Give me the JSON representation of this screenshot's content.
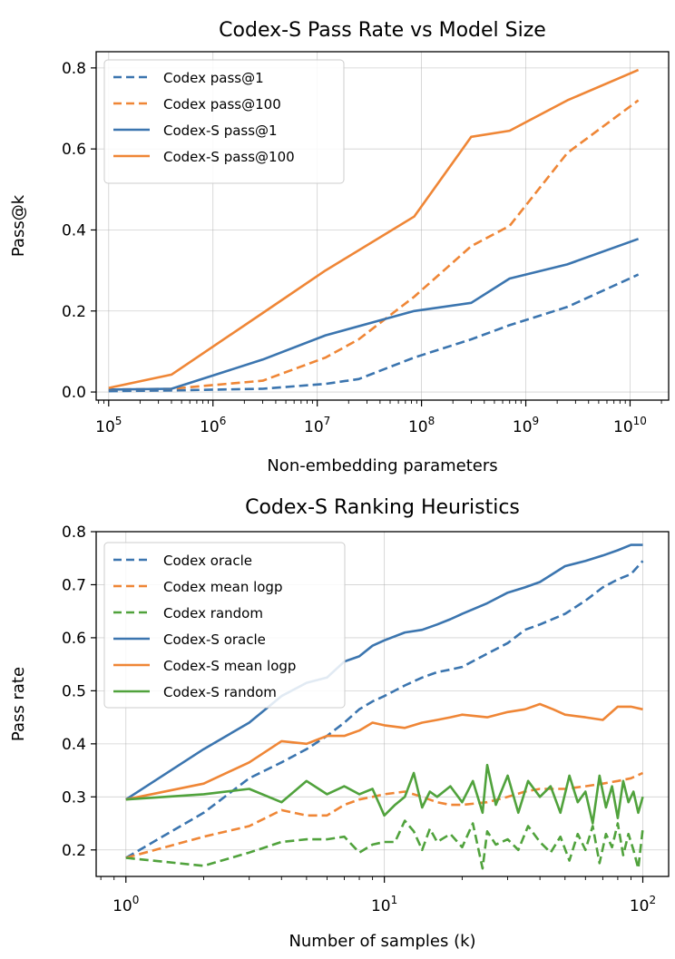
{
  "chart_data": [
    {
      "type": "line",
      "title": "Codex-S Pass Rate vs Model Size",
      "xlabel": "Non-embedding parameters",
      "ylabel": "Pass@k",
      "xscale": "log",
      "ylim": [
        -0.02,
        0.84
      ],
      "yticks": [
        "0.0",
        "0.2",
        "0.4",
        "0.6",
        "0.8"
      ],
      "xticks": [
        "10^5",
        "10^6",
        "10^7",
        "10^8",
        "10^9",
        "10^10"
      ],
      "grid": true,
      "legend_position": "top-left",
      "series": [
        {
          "name": "Codex pass@1",
          "color": "#3b75af",
          "style": "dashed",
          "x": [
            100000,
            400000,
            3000000,
            12000000,
            25000000,
            85000000,
            300000000,
            700000000,
            2500000000,
            12000000000
          ],
          "y": [
            0.002,
            0.004,
            0.008,
            0.02,
            0.032,
            0.085,
            0.13,
            0.165,
            0.21,
            0.29
          ]
        },
        {
          "name": "Codex pass@100",
          "color": "#ef8636",
          "style": "dashed",
          "x": [
            100000,
            400000,
            3000000,
            12000000,
            25000000,
            85000000,
            300000000,
            700000000,
            2500000000,
            12000000000
          ],
          "y": [
            0.006,
            0.008,
            0.028,
            0.085,
            0.13,
            0.235,
            0.36,
            0.41,
            0.59,
            0.72
          ]
        },
        {
          "name": "Codex-S pass@1",
          "color": "#3b75af",
          "style": "solid",
          "x": [
            100000,
            400000,
            3000000,
            12000000,
            85000000,
            300000000,
            700000000,
            2500000000,
            12000000000
          ],
          "y": [
            0.006,
            0.008,
            0.08,
            0.14,
            0.2,
            0.22,
            0.28,
            0.315,
            0.378
          ]
        },
        {
          "name": "Codex-S pass@100",
          "color": "#ef8636",
          "style": "solid",
          "x": [
            100000,
            400000,
            3000000,
            12000000,
            85000000,
            300000000,
            700000000,
            2500000000,
            12000000000
          ],
          "y": [
            0.01,
            0.043,
            0.195,
            0.3,
            0.433,
            0.63,
            0.645,
            0.72,
            0.795
          ]
        }
      ]
    },
    {
      "type": "line",
      "title": "Codex-S Ranking Heuristics",
      "xlabel": "Number of samples (k)",
      "ylabel": "Pass rate",
      "xscale": "log",
      "ylim": [
        0.15,
        0.8
      ],
      "yticks": [
        "0.2",
        "0.3",
        "0.4",
        "0.5",
        "0.6",
        "0.7",
        "0.8"
      ],
      "xticks": [
        "10^0",
        "10^1",
        "10^2"
      ],
      "grid": true,
      "legend_position": "top-left",
      "series": [
        {
          "name": "Codex oracle",
          "color": "#3b75af",
          "style": "dashed",
          "x": [
            1,
            2,
            3,
            4,
            5,
            6,
            7,
            8,
            9,
            10,
            12,
            14,
            16,
            18,
            20,
            25,
            30,
            35,
            40,
            50,
            60,
            70,
            80,
            90,
            100
          ],
          "y": [
            0.185,
            0.27,
            0.335,
            0.365,
            0.39,
            0.415,
            0.44,
            0.465,
            0.48,
            0.49,
            0.51,
            0.525,
            0.535,
            0.54,
            0.545,
            0.57,
            0.59,
            0.615,
            0.625,
            0.645,
            0.67,
            0.695,
            0.71,
            0.72,
            0.745
          ]
        },
        {
          "name": "Codex mean logp",
          "color": "#ef8636",
          "style": "dashed",
          "x": [
            1,
            2,
            3,
            4,
            5,
            6,
            7,
            8,
            9,
            10,
            12,
            14,
            16,
            18,
            20,
            25,
            30,
            35,
            40,
            50,
            60,
            70,
            80,
            90,
            100
          ],
          "y": [
            0.185,
            0.225,
            0.245,
            0.275,
            0.265,
            0.265,
            0.285,
            0.295,
            0.3,
            0.305,
            0.31,
            0.3,
            0.29,
            0.285,
            0.285,
            0.29,
            0.3,
            0.31,
            0.315,
            0.315,
            0.32,
            0.325,
            0.33,
            0.335,
            0.345
          ]
        },
        {
          "name": "Codex random",
          "color": "#50a23c",
          "style": "dashed",
          "x": [
            1,
            2,
            3,
            4,
            5,
            6,
            7,
            8,
            9,
            10,
            11,
            12,
            13,
            14,
            15,
            16,
            18,
            20,
            22,
            24,
            25,
            27,
            30,
            33,
            36,
            40,
            44,
            48,
            52,
            56,
            60,
            64,
            68,
            72,
            76,
            80,
            84,
            88,
            92,
            96,
            100
          ],
          "y": [
            0.185,
            0.17,
            0.195,
            0.215,
            0.22,
            0.22,
            0.225,
            0.195,
            0.21,
            0.215,
            0.215,
            0.255,
            0.235,
            0.2,
            0.24,
            0.215,
            0.23,
            0.205,
            0.25,
            0.165,
            0.235,
            0.21,
            0.22,
            0.2,
            0.245,
            0.215,
            0.195,
            0.225,
            0.18,
            0.23,
            0.2,
            0.245,
            0.175,
            0.23,
            0.205,
            0.25,
            0.19,
            0.23,
            0.2,
            0.165,
            0.24
          ]
        },
        {
          "name": "Codex-S oracle",
          "color": "#3b75af",
          "style": "solid",
          "x": [
            1,
            2,
            3,
            4,
            5,
            6,
            7,
            8,
            9,
            10,
            12,
            14,
            16,
            18,
            20,
            25,
            30,
            35,
            40,
            50,
            60,
            70,
            80,
            90,
            100
          ],
          "y": [
            0.295,
            0.39,
            0.44,
            0.49,
            0.515,
            0.525,
            0.555,
            0.565,
            0.585,
            0.595,
            0.61,
            0.615,
            0.625,
            0.635,
            0.645,
            0.665,
            0.685,
            0.695,
            0.705,
            0.735,
            0.745,
            0.755,
            0.765,
            0.775,
            0.775
          ]
        },
        {
          "name": "Codex-S mean logp",
          "color": "#ef8636",
          "style": "solid",
          "x": [
            1,
            2,
            3,
            4,
            5,
            6,
            7,
            8,
            9,
            10,
            12,
            14,
            16,
            18,
            20,
            25,
            30,
            35,
            40,
            45,
            50,
            60,
            70,
            80,
            90,
            100
          ],
          "y": [
            0.295,
            0.325,
            0.365,
            0.405,
            0.4,
            0.415,
            0.415,
            0.425,
            0.44,
            0.435,
            0.43,
            0.44,
            0.445,
            0.45,
            0.455,
            0.45,
            0.46,
            0.465,
            0.475,
            0.465,
            0.455,
            0.45,
            0.445,
            0.47,
            0.47,
            0.465
          ]
        },
        {
          "name": "Codex-S random",
          "color": "#50a23c",
          "style": "solid",
          "x": [
            1,
            2,
            3,
            4,
            5,
            6,
            7,
            8,
            9,
            10,
            11,
            12,
            13,
            14,
            15,
            16,
            18,
            20,
            22,
            24,
            25,
            27,
            30,
            33,
            36,
            40,
            44,
            48,
            52,
            56,
            60,
            64,
            68,
            72,
            76,
            80,
            84,
            88,
            92,
            96,
            100
          ],
          "y": [
            0.295,
            0.305,
            0.315,
            0.29,
            0.33,
            0.305,
            0.32,
            0.305,
            0.315,
            0.265,
            0.285,
            0.3,
            0.345,
            0.28,
            0.31,
            0.3,
            0.32,
            0.29,
            0.33,
            0.27,
            0.36,
            0.285,
            0.34,
            0.27,
            0.33,
            0.3,
            0.32,
            0.27,
            0.34,
            0.29,
            0.31,
            0.25,
            0.34,
            0.28,
            0.32,
            0.26,
            0.33,
            0.29,
            0.31,
            0.27,
            0.3
          ]
        }
      ]
    }
  ]
}
